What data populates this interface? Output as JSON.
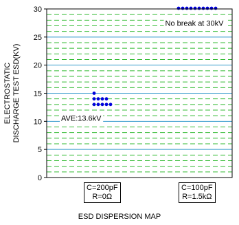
{
  "chart_data": {
    "type": "scatter",
    "title": "ESD DISPERSION MAP",
    "ylabel_lines": [
      "ELECTROSTATIC",
      "DISCHARGE TEST ESD(KV)"
    ],
    "ylim": [
      0,
      30
    ],
    "yticks": [
      0,
      5,
      10,
      15,
      20,
      25,
      30
    ],
    "grid": "major solid blue, minor dashed green",
    "categories": [
      {
        "line1": "C=200pF",
        "line2": "R=0Ω"
      },
      {
        "line1": "C=100pF",
        "line2": "R=1.5kΩ"
      }
    ],
    "series": [
      {
        "category_index": 0,
        "points": [
          {
            "col": 0,
            "y": 15
          },
          {
            "col": 0,
            "y": 14
          },
          {
            "col": 0,
            "y": 13
          },
          {
            "col": 1,
            "y": 14
          },
          {
            "col": 1,
            "y": 13
          },
          {
            "col": 2,
            "y": 14
          },
          {
            "col": 2,
            "y": 13
          },
          {
            "col": 3,
            "y": 14
          },
          {
            "col": 3,
            "y": 13
          },
          {
            "col": 4,
            "y": 13
          }
        ]
      },
      {
        "category_index": 1,
        "points": [
          {
            "col": 0,
            "y": 30
          },
          {
            "col": 1,
            "y": 30
          },
          {
            "col": 2,
            "y": 30
          },
          {
            "col": 3,
            "y": 30
          },
          {
            "col": 4,
            "y": 30
          },
          {
            "col": 5,
            "y": 30
          },
          {
            "col": 6,
            "y": 30
          },
          {
            "col": 7,
            "y": 30
          },
          {
            "col": 8,
            "y": 30
          },
          {
            "col": 9,
            "y": 30
          }
        ]
      }
    ],
    "annotations": [
      {
        "text": "No break at 30kV",
        "category_index": 1,
        "y": 27.5
      },
      {
        "text": "AVE:13.6kV",
        "category_index": 0,
        "y": 10.6
      }
    ],
    "colors": {
      "points": "#0000dd",
      "major_grid": "#3399cc",
      "minor_grid": "#33bb33"
    }
  }
}
